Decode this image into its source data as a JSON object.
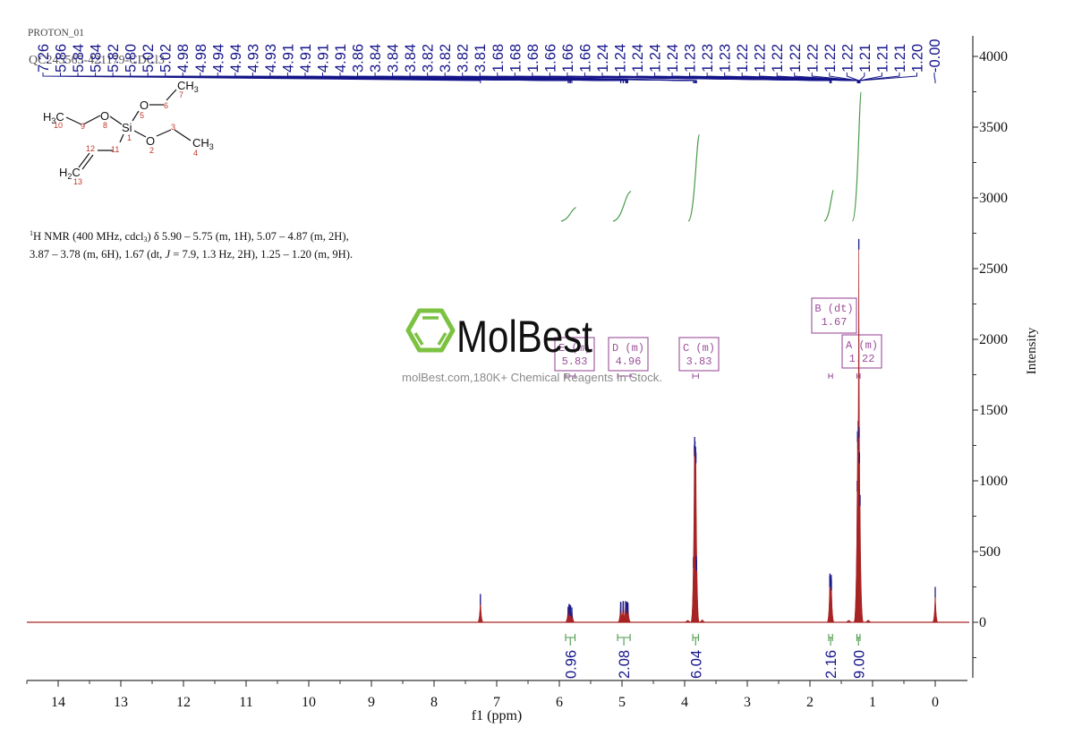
{
  "header": {
    "experiment": "PROTON_01",
    "sample": "QC245565-421179-CDCl3"
  },
  "nmr_description": {
    "line1_pre": "H NMR (400 MHz, cdcl",
    "line1_sup": "1",
    "line1_sub": "3",
    "line1_post": ") δ 5.90 – 5.75 (m, 1H), 5.07 – 4.87 (m, 2H),",
    "line2_pre": "3.87 – 3.78 (m, 6H), 1.67 (dt, ",
    "line2_italic": "J",
    "line2_post": " = 7.9, 1.3 Hz, 2H), 1.25 – 1.20 (m, 9H)."
  },
  "molecule": {
    "atoms": {
      "ch3_top": {
        "main": "CH",
        "sub": "3"
      },
      "o5": "O",
      "h3c": {
        "main": "H",
        "sub": "3",
        "tail": "C"
      },
      "o8": "O",
      "si": "Si",
      "o2": "O",
      "ch3_right": {
        "main": "CH",
        "sub": "3"
      },
      "h2c": {
        "main": "H",
        "sub": "2",
        "tail": "C"
      }
    },
    "numbers": {
      "n1": "1",
      "n2": "2",
      "n3": "3",
      "n4": "4",
      "n5": "5",
      "n6": "6",
      "n7": "7",
      "n8": "8",
      "n9": "9",
      "n10": "10",
      "n11": "11",
      "n12": "12",
      "n13": "13"
    }
  },
  "watermark": {
    "brand": "MolBest",
    "tagline": "molBest.com,180K+ Chemical Reagents In Stock.",
    "brand_color": "#7cc242"
  },
  "colors": {
    "spectrum": "#a82424",
    "peak_top": "#1c1c8c",
    "peak_label": "#16168a",
    "integral": "#4a9a4a",
    "multiplet": "#9a4e9a",
    "axis": "#333333"
  },
  "chart_data": {
    "type": "line",
    "title": "",
    "xlabel": "f1 (ppm)",
    "ylabel": "Intensity",
    "xlim": [
      14.5,
      -0.5
    ],
    "ylim": [
      -400,
      4250
    ],
    "x_ticks": [
      14,
      13,
      12,
      11,
      10,
      9,
      8,
      7,
      6,
      5,
      4,
      3,
      2,
      1,
      0
    ],
    "y_ticks": [
      0,
      500,
      1000,
      1500,
      2000,
      2500,
      3000,
      3500,
      4000
    ],
    "grid": false,
    "peaks": [
      {
        "ppm": 7.26,
        "intensity": 200
      },
      {
        "ppm": 5.86,
        "intensity": 110
      },
      {
        "ppm": 5.845,
        "intensity": 130
      },
      {
        "ppm": 5.835,
        "intensity": 125
      },
      {
        "ppm": 5.82,
        "intensity": 120
      },
      {
        "ppm": 5.8,
        "intensity": 105
      },
      {
        "ppm": 5.022,
        "intensity": 145
      },
      {
        "ppm": 5.018,
        "intensity": 140
      },
      {
        "ppm": 4.982,
        "intensity": 150
      },
      {
        "ppm": 4.978,
        "intensity": 146
      },
      {
        "ppm": 4.942,
        "intensity": 150
      },
      {
        "ppm": 4.938,
        "intensity": 146
      },
      {
        "ppm": 4.932,
        "intensity": 140
      },
      {
        "ppm": 4.928,
        "intensity": 136
      },
      {
        "ppm": 4.914,
        "intensity": 145
      },
      {
        "ppm": 4.911,
        "intensity": 140
      },
      {
        "ppm": 4.908,
        "intensity": 137
      },
      {
        "ppm": 4.905,
        "intensity": 134
      },
      {
        "ppm": 3.86,
        "intensity": 460
      },
      {
        "ppm": 3.845,
        "intensity": 1250
      },
      {
        "ppm": 3.84,
        "intensity": 1310
      },
      {
        "ppm": 3.835,
        "intensity": 1280
      },
      {
        "ppm": 3.825,
        "intensity": 1240
      },
      {
        "ppm": 3.82,
        "intensity": 1200
      },
      {
        "ppm": 3.815,
        "intensity": 470
      },
      {
        "ppm": 3.81,
        "intensity": 440
      },
      {
        "ppm": 3.72,
        "intensity": 18
      },
      {
        "ppm": 3.95,
        "intensity": 14
      },
      {
        "ppm": 1.683,
        "intensity": 330
      },
      {
        "ppm": 1.68,
        "intensity": 345
      },
      {
        "ppm": 1.677,
        "intensity": 320
      },
      {
        "ppm": 1.663,
        "intensity": 320
      },
      {
        "ppm": 1.66,
        "intensity": 335
      },
      {
        "ppm": 1.657,
        "intensity": 300
      },
      {
        "ppm": 1.245,
        "intensity": 1000
      },
      {
        "ppm": 1.24,
        "intensity": 1350
      },
      {
        "ppm": 1.235,
        "intensity": 1300
      },
      {
        "ppm": 1.23,
        "intensity": 1424
      },
      {
        "ppm": 1.225,
        "intensity": 1330
      },
      {
        "ppm": 1.22,
        "intensity": 2710
      },
      {
        "ppm": 1.215,
        "intensity": 1380
      },
      {
        "ppm": 1.21,
        "intensity": 1200
      },
      {
        "ppm": 1.2,
        "intensity": 900
      },
      {
        "ppm": 1.38,
        "intensity": 14
      },
      {
        "ppm": 1.07,
        "intensity": 16
      },
      {
        "ppm": 0.0,
        "intensity": 250
      }
    ],
    "peak_labels": [
      "7.26",
      "5.86",
      "5.84",
      "5.84",
      "5.82",
      "5.80",
      "5.02",
      "5.02",
      "4.98",
      "4.98",
      "4.94",
      "4.94",
      "4.93",
      "4.93",
      "4.91",
      "4.91",
      "4.91",
      "4.91",
      "3.86",
      "3.84",
      "3.84",
      "3.84",
      "3.82",
      "3.82",
      "3.82",
      "3.81",
      "1.68",
      "1.68",
      "1.68",
      "1.66",
      "1.66",
      "1.66",
      "1.24",
      "1.24",
      "1.24",
      "1.24",
      "1.24",
      "1.23",
      "1.23",
      "1.23",
      "1.22",
      "1.22",
      "1.22",
      "1.22",
      "1.22",
      "1.22",
      "1.22",
      "1.21",
      "1.21",
      "1.21",
      "1.20",
      "-0.00"
    ],
    "multiplets": [
      {
        "id": "E",
        "type": "(m)",
        "shift": "5.83",
        "range": [
          5.9,
          5.75
        ],
        "integral": "0.96"
      },
      {
        "id": "D",
        "type": "(m)",
        "shift": "4.96",
        "range": [
          5.07,
          4.87
        ],
        "integral": "2.08"
      },
      {
        "id": "C",
        "type": "(m)",
        "shift": "3.83",
        "range": [
          3.87,
          3.78
        ],
        "integral": "6.04"
      },
      {
        "id": "B",
        "type": "(dt)",
        "shift": "1.67",
        "range": [
          1.7,
          1.64
        ],
        "integral": "2.16"
      },
      {
        "id": "A",
        "type": "(m)",
        "shift": "1.22",
        "range": [
          1.25,
          1.2
        ],
        "integral": "9.00"
      }
    ]
  }
}
